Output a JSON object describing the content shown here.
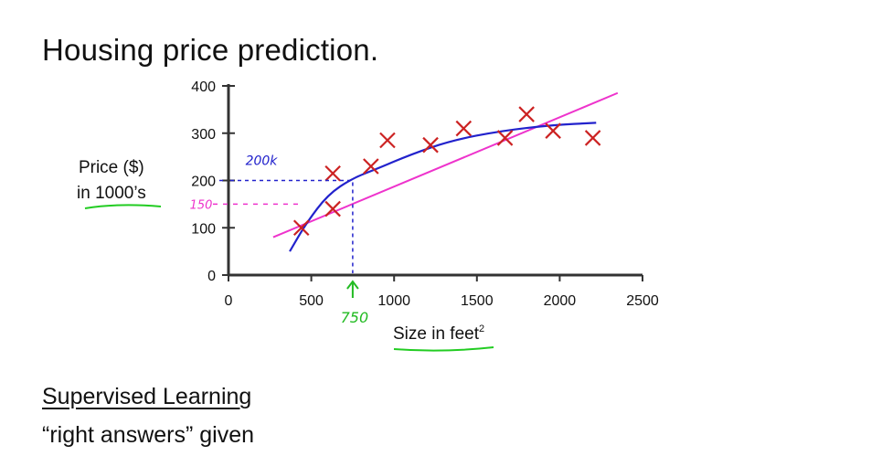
{
  "slide": {
    "title": "Housing price prediction.",
    "section_heading": "Supervised Learning",
    "section_note": "“right answers” given"
  },
  "colors": {
    "axis": "#333333",
    "points": "#cc2222",
    "linear_fit": "#ee33cc",
    "curve_fit": "#2222cc",
    "underline": "#22cc22",
    "annotation_green": "#22bb22"
  },
  "chart_data": {
    "type": "scatter",
    "title": "Housing price prediction.",
    "xlabel": "Size in feet",
    "xlabel_superscript": "2",
    "ylabel_line1": "Price ($)",
    "ylabel_line2": "in 1000’s",
    "xlim": [
      0,
      2500
    ],
    "ylim": [
      0,
      400
    ],
    "xticks": [
      0,
      500,
      1000,
      1500,
      2000,
      2500
    ],
    "yticks": [
      0,
      100,
      200,
      300,
      400
    ],
    "grid": false,
    "points": [
      {
        "x": 440,
        "y": 100
      },
      {
        "x": 630,
        "y": 140
      },
      {
        "x": 630,
        "y": 215
      },
      {
        "x": 860,
        "y": 230
      },
      {
        "x": 960,
        "y": 285
      },
      {
        "x": 1220,
        "y": 275
      },
      {
        "x": 1420,
        "y": 310
      },
      {
        "x": 1670,
        "y": 290
      },
      {
        "x": 1800,
        "y": 340
      },
      {
        "x": 1960,
        "y": 305
      },
      {
        "x": 2200,
        "y": 290
      }
    ],
    "series": [
      {
        "name": "",
        "kind": "straight-line-fit",
        "x": [
          270,
          2350
        ],
        "y": [
          80,
          385
        ]
      },
      {
        "name": "",
        "kind": "quadratic-fit",
        "x": [
          370,
          470,
          600,
          750,
          900,
          1100,
          1350,
          1650,
          1950,
          2220
        ],
        "y": [
          50,
          110,
          170,
          205,
          225,
          255,
          285,
          305,
          317,
          322
        ]
      }
    ],
    "annotations": {
      "query_x": {
        "value": 750,
        "label": "750"
      },
      "pred_curve": {
        "value": 200,
        "label": "200k"
      },
      "pred_line": {
        "value": 150,
        "label": "150"
      }
    }
  }
}
